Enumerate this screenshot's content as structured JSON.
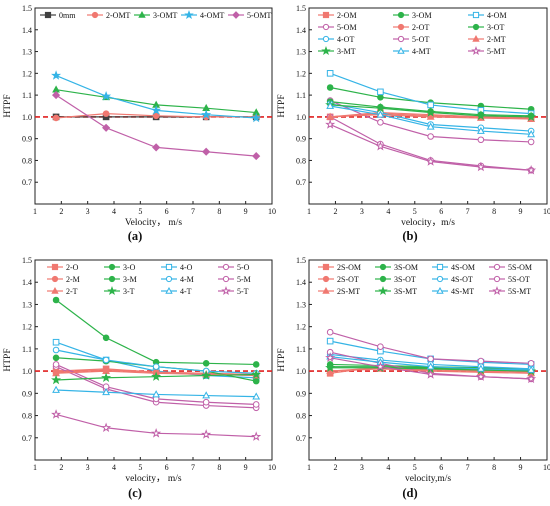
{
  "chart_data": [
    {
      "panel_label": "(a)",
      "type": "line",
      "ylabel": "HTPF",
      "xlabel": "Velocity， m/s",
      "xlim": [
        1,
        10
      ],
      "ylim": [
        0.6,
        1.5
      ],
      "xticks": [
        1,
        2,
        3,
        4,
        5,
        6,
        7,
        8,
        9,
        10
      ],
      "yticks": [
        0.7,
        0.8,
        0.9,
        1.0,
        1.1,
        1.2,
        1.3,
        1.4,
        1.5
      ],
      "legend_location": "top",
      "legend_columns": 5,
      "reference_line": 1.0,
      "series": [
        {
          "name": "0mm",
          "color": "#404040",
          "marker": "square",
          "x": [
            1.8,
            3.7,
            5.6,
            7.5,
            9.4
          ],
          "y": [
            1.0,
            1.0,
            1.0,
            1.0,
            1.0
          ]
        },
        {
          "name": "2-OMT",
          "color": "#f07870",
          "marker": "circle",
          "x": [
            1.8,
            3.7,
            5.6,
            7.5,
            9.4
          ],
          "y": [
            0.995,
            1.015,
            1.005,
            1.0,
            1.0
          ]
        },
        {
          "name": "3-OMT",
          "color": "#2db34a",
          "marker": "triangle",
          "x": [
            1.8,
            3.7,
            5.6,
            7.5,
            9.4
          ],
          "y": [
            1.125,
            1.09,
            1.055,
            1.04,
            1.02
          ]
        },
        {
          "name": "4-OMT",
          "color": "#35b4e6",
          "marker": "star",
          "x": [
            1.8,
            3.7,
            5.6,
            7.5,
            9.4
          ],
          "y": [
            1.19,
            1.095,
            1.03,
            1.01,
            0.995
          ]
        },
        {
          "name": "5-OMT",
          "color": "#c060a8",
          "marker": "diamond",
          "x": [
            1.8,
            3.7,
            5.6,
            7.5,
            9.4
          ],
          "y": [
            1.1,
            0.95,
            0.86,
            0.84,
            0.82
          ]
        }
      ]
    },
    {
      "panel_label": "(b)",
      "type": "line",
      "ylabel": "HTPF",
      "xlabel": "velocity，m/s",
      "xlim": [
        1,
        10
      ],
      "ylim": [
        0.6,
        1.5
      ],
      "xticks": [
        1,
        2,
        3,
        4,
        5,
        6,
        7,
        8,
        9,
        10
      ],
      "yticks": [
        0.7,
        0.8,
        0.9,
        1.0,
        1.1,
        1.2,
        1.3,
        1.4,
        1.5
      ],
      "legend_location": "top-right",
      "legend_columns": 3,
      "reference_line": 1.0,
      "series": [
        {
          "name": "2-OM",
          "color": "#f07870",
          "marker": "square",
          "fill": true,
          "x": [
            1.8,
            3.7,
            5.6,
            7.5,
            9.4
          ],
          "y": [
            1.0,
            1.02,
            1.01,
            1.0,
            0.995
          ]
        },
        {
          "name": "3-OM",
          "color": "#2db34a",
          "marker": "circle",
          "fill": true,
          "x": [
            1.8,
            3.7,
            5.6,
            7.5,
            9.4
          ],
          "y": [
            1.135,
            1.09,
            1.065,
            1.05,
            1.035
          ]
        },
        {
          "name": "4-OM",
          "color": "#35b4e6",
          "marker": "square",
          "fill": false,
          "x": [
            1.8,
            3.7,
            5.6,
            7.5,
            9.4
          ],
          "y": [
            1.2,
            1.115,
            1.055,
            1.03,
            1.015
          ]
        },
        {
          "name": "5-OM",
          "color": "#c060a8",
          "marker": "circle",
          "fill": false,
          "x": [
            1.8,
            3.7,
            5.6,
            7.5,
            9.4
          ],
          "y": [
            1.075,
            0.975,
            0.91,
            0.895,
            0.885
          ]
        },
        {
          "name": "2-OT",
          "color": "#f07870",
          "marker": "circle",
          "fill": true,
          "x": [
            1.8,
            3.7,
            5.6,
            7.5,
            9.4
          ],
          "y": [
            1.0,
            1.015,
            1.005,
            1.0,
            0.995
          ]
        },
        {
          "name": "3-OT",
          "color": "#2db34a",
          "marker": "circle",
          "fill": true,
          "x": [
            1.8,
            3.7,
            5.6,
            7.5,
            9.4
          ],
          "y": [
            1.07,
            1.045,
            1.025,
            1.01,
            1.005
          ]
        },
        {
          "name": "4-OT",
          "color": "#35b4e6",
          "marker": "circle",
          "fill": false,
          "x": [
            1.8,
            3.7,
            5.6,
            7.5,
            9.4
          ],
          "y": [
            1.06,
            1.02,
            0.965,
            0.95,
            0.935
          ]
        },
        {
          "name": "5-OT",
          "color": "#c060a8",
          "marker": "circle",
          "fill": false,
          "x": [
            1.8,
            3.7,
            5.6,
            7.5,
            9.4
          ],
          "y": [
            1.0,
            0.875,
            0.8,
            0.775,
            0.755
          ]
        },
        {
          "name": "2-MT",
          "color": "#f07870",
          "marker": "triangle",
          "fill": true,
          "x": [
            1.8,
            3.7,
            5.6,
            7.5,
            9.4
          ],
          "y": [
            1.0,
            1.01,
            1.0,
            0.995,
            0.99
          ]
        },
        {
          "name": "3-MT",
          "color": "#2db34a",
          "marker": "star",
          "fill": true,
          "x": [
            1.8,
            3.7,
            5.6,
            7.5,
            9.4
          ],
          "y": [
            1.055,
            1.04,
            1.02,
            1.005,
            1.0
          ]
        },
        {
          "name": "4-MT",
          "color": "#35b4e6",
          "marker": "triangle",
          "fill": false,
          "x": [
            1.8,
            3.7,
            5.6,
            7.5,
            9.4
          ],
          "y": [
            1.05,
            1.01,
            0.955,
            0.935,
            0.92
          ]
        },
        {
          "name": "5-MT",
          "color": "#c060a8",
          "marker": "star",
          "fill": false,
          "x": [
            1.8,
            3.7,
            5.6,
            7.5,
            9.4
          ],
          "y": [
            0.965,
            0.865,
            0.795,
            0.77,
            0.755
          ]
        }
      ]
    },
    {
      "panel_label": "(c)",
      "type": "line",
      "ylabel": "HTPF",
      "xlabel": "velocity， m/s",
      "xlim": [
        1,
        10
      ],
      "ylim": [
        0.6,
        1.5
      ],
      "xticks": [
        1,
        2,
        3,
        4,
        5,
        6,
        7,
        8,
        9,
        10
      ],
      "yticks": [
        0.7,
        0.8,
        0.9,
        1.0,
        1.1,
        1.2,
        1.3,
        1.4,
        1.5
      ],
      "legend_location": "top-right",
      "legend_columns": 4,
      "reference_line": 1.0,
      "series": [
        {
          "name": "2-O",
          "color": "#f07870",
          "marker": "square",
          "fill": true,
          "x": [
            1.8,
            3.7,
            5.6,
            7.5,
            9.4
          ],
          "y": [
            1.0,
            1.01,
            0.995,
            0.99,
            0.985
          ]
        },
        {
          "name": "3-O",
          "color": "#2db34a",
          "marker": "circle",
          "fill": true,
          "x": [
            1.8,
            3.7,
            5.6,
            7.5,
            9.4
          ],
          "y": [
            1.32,
            1.15,
            1.04,
            1.035,
            1.03
          ]
        },
        {
          "name": "4-O",
          "color": "#35b4e6",
          "marker": "square",
          "fill": false,
          "x": [
            1.8,
            3.7,
            5.6,
            7.5,
            9.4
          ],
          "y": [
            1.13,
            1.05,
            1.0,
            0.98,
            0.97
          ]
        },
        {
          "name": "5-O",
          "color": "#c060a8",
          "marker": "circle",
          "fill": false,
          "x": [
            1.8,
            3.7,
            5.6,
            7.5,
            9.4
          ],
          "y": [
            1.02,
            0.92,
            0.86,
            0.845,
            0.835
          ]
        },
        {
          "name": "2-M",
          "color": "#f07870",
          "marker": "circle",
          "fill": true,
          "x": [
            1.8,
            3.7,
            5.6,
            7.5,
            9.4
          ],
          "y": [
            0.995,
            1.005,
            0.995,
            0.99,
            0.985
          ]
        },
        {
          "name": "3-M",
          "color": "#2db34a",
          "marker": "circle",
          "fill": true,
          "x": [
            1.8,
            3.7,
            5.6,
            7.5,
            9.4
          ],
          "y": [
            1.06,
            1.045,
            1.02,
            1.0,
            0.955
          ]
        },
        {
          "name": "4-M",
          "color": "#35b4e6",
          "marker": "circle",
          "fill": false,
          "x": [
            1.8,
            3.7,
            5.6,
            7.5,
            9.4
          ],
          "y": [
            1.095,
            1.05,
            1.02,
            1.0,
            0.99
          ]
        },
        {
          "name": "5-M",
          "color": "#c060a8",
          "marker": "circle",
          "fill": false,
          "x": [
            1.8,
            3.7,
            5.6,
            7.5,
            9.4
          ],
          "y": [
            1.03,
            0.93,
            0.875,
            0.86,
            0.85
          ]
        },
        {
          "name": "2-T",
          "color": "#f07870",
          "marker": "triangle",
          "fill": true,
          "x": [
            1.8,
            3.7,
            5.6,
            7.5,
            9.4
          ],
          "y": [
            0.99,
            1.0,
            0.99,
            0.985,
            0.98
          ]
        },
        {
          "name": "3-T",
          "color": "#2db34a",
          "marker": "star",
          "fill": true,
          "x": [
            1.8,
            3.7,
            5.6,
            7.5,
            9.4
          ],
          "y": [
            0.96,
            0.97,
            0.975,
            0.98,
            0.985
          ]
        },
        {
          "name": "4-T",
          "color": "#35b4e6",
          "marker": "triangle",
          "fill": false,
          "x": [
            1.8,
            3.7,
            5.6,
            7.5,
            9.4
          ],
          "y": [
            0.915,
            0.905,
            0.895,
            0.89,
            0.885
          ]
        },
        {
          "name": "5-T",
          "color": "#c060a8",
          "marker": "star",
          "fill": false,
          "x": [
            1.8,
            3.7,
            5.6,
            7.5,
            9.4
          ],
          "y": [
            0.805,
            0.745,
            0.72,
            0.715,
            0.705
          ]
        }
      ]
    },
    {
      "panel_label": "(d)",
      "type": "line",
      "ylabel": "HTPF",
      "xlabel": "velocity,m/s",
      "xlim": [
        1,
        10
      ],
      "ylim": [
        0.6,
        1.5
      ],
      "xticks": [
        1,
        2,
        3,
        4,
        5,
        6,
        7,
        8,
        9,
        10
      ],
      "yticks": [
        0.7,
        0.8,
        0.9,
        1.0,
        1.1,
        1.2,
        1.3,
        1.4,
        1.5
      ],
      "legend_location": "top-right",
      "legend_columns": 4,
      "reference_line": 1.0,
      "series": [
        {
          "name": "2S-OM",
          "color": "#f07870",
          "marker": "square",
          "fill": true,
          "x": [
            1.8,
            3.7,
            5.6,
            7.5,
            9.4
          ],
          "y": [
            0.99,
            1.02,
            1.01,
            1.005,
            1.0
          ]
        },
        {
          "name": "3S-OM",
          "color": "#2db34a",
          "marker": "circle",
          "fill": true,
          "x": [
            1.8,
            3.7,
            5.6,
            7.5,
            9.4
          ],
          "y": [
            1.03,
            1.025,
            1.02,
            1.015,
            1.01
          ]
        },
        {
          "name": "4S-OM",
          "color": "#35b4e6",
          "marker": "square",
          "fill": false,
          "x": [
            1.8,
            3.7,
            5.6,
            7.5,
            9.4
          ],
          "y": [
            1.135,
            1.09,
            1.055,
            1.04,
            1.03
          ]
        },
        {
          "name": "5S-OM",
          "color": "#c060a8",
          "marker": "circle",
          "fill": false,
          "x": [
            1.8,
            3.7,
            5.6,
            7.5,
            9.4
          ],
          "y": [
            1.175,
            1.11,
            1.055,
            1.045,
            1.035
          ]
        },
        {
          "name": "2S-OT",
          "color": "#f07870",
          "marker": "circle",
          "fill": true,
          "x": [
            1.8,
            3.7,
            5.6,
            7.5,
            9.4
          ],
          "y": [
            1.0,
            1.015,
            1.005,
            1.0,
            0.995
          ]
        },
        {
          "name": "3S-OT",
          "color": "#2db34a",
          "marker": "circle",
          "fill": true,
          "x": [
            1.8,
            3.7,
            5.6,
            7.5,
            9.4
          ],
          "y": [
            1.02,
            1.02,
            1.015,
            1.01,
            1.005
          ]
        },
        {
          "name": "4S-OT",
          "color": "#35b4e6",
          "marker": "circle",
          "fill": false,
          "x": [
            1.8,
            3.7,
            5.6,
            7.5,
            9.4
          ],
          "y": [
            1.075,
            1.05,
            1.03,
            1.02,
            1.01
          ]
        },
        {
          "name": "5S-OT",
          "color": "#c060a8",
          "marker": "circle",
          "fill": false,
          "x": [
            1.8,
            3.7,
            5.6,
            7.5,
            9.4
          ],
          "y": [
            1.085,
            1.035,
            0.99,
            0.975,
            0.965
          ]
        },
        {
          "name": "2S-MT",
          "color": "#f07870",
          "marker": "triangle",
          "fill": true,
          "x": [
            1.8,
            3.7,
            5.6,
            7.5,
            9.4
          ],
          "y": [
            1.0,
            1.01,
            1.0,
            0.995,
            0.99
          ]
        },
        {
          "name": "3S-MT",
          "color": "#2db34a",
          "marker": "star",
          "fill": true,
          "x": [
            1.8,
            3.7,
            5.6,
            7.5,
            9.4
          ],
          "y": [
            1.015,
            1.015,
            1.01,
            1.005,
            1.0
          ]
        },
        {
          "name": "4S-MT",
          "color": "#35b4e6",
          "marker": "triangle",
          "fill": false,
          "x": [
            1.8,
            3.7,
            5.6,
            7.5,
            9.4
          ],
          "y": [
            1.065,
            1.04,
            1.02,
            1.01,
            1.005
          ]
        },
        {
          "name": "5S-MT",
          "color": "#c060a8",
          "marker": "star",
          "fill": false,
          "x": [
            1.8,
            3.7,
            5.6,
            7.5,
            9.4
          ],
          "y": [
            1.06,
            1.02,
            0.985,
            0.975,
            0.965
          ]
        }
      ]
    }
  ]
}
